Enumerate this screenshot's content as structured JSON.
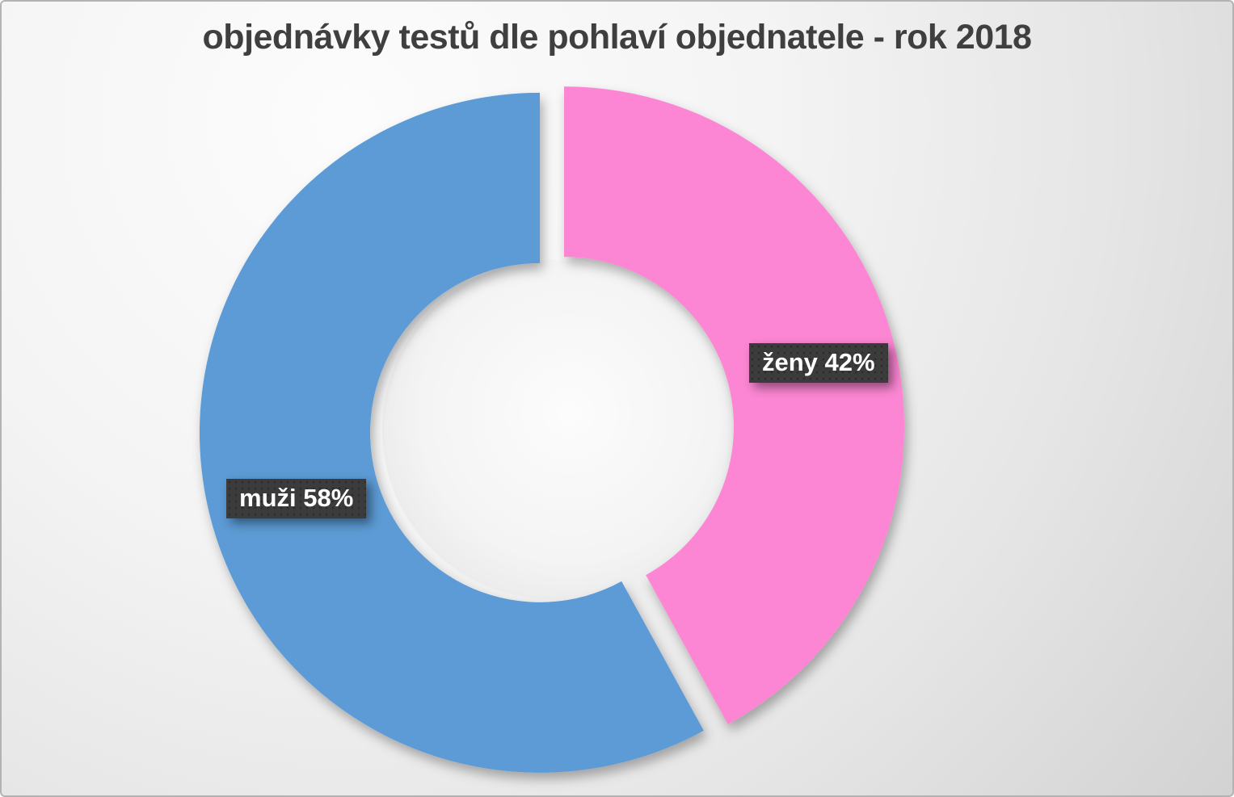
{
  "page": {
    "background_top_left": "#FAFAFA",
    "background_bottom_right": "#D2D2D2",
    "border_color": "#B3B3B3",
    "title_color": "#3F3F3F"
  },
  "chart_data": {
    "type": "pie",
    "subtype": "donut",
    "title": "objednávky testů dle pohlaví objednatele - rok 2018",
    "categories": [
      "ženy",
      "muži"
    ],
    "values": [
      42,
      58
    ],
    "unit": "%",
    "segments": [
      {
        "label": "ženy",
        "slug": "zeny",
        "value": 42,
        "percent_text": "42%",
        "data_label": "ženy 42%",
        "color": "#FC86D3"
      },
      {
        "label": "muži",
        "slug": "muzi",
        "value": 58,
        "percent_text": "58%",
        "data_label": "muži 58%",
        "color": "#5B9BD5"
      }
    ],
    "start_angle_deg": 0,
    "direction": "clockwise",
    "donut_hole_ratio": 0.5,
    "slice_separation": true,
    "legend": "none",
    "data_label_style": {
      "text_color": "#FFFFFF",
      "background_color": "#3B3B3B",
      "pattern": "dotted",
      "font_weight": "bold"
    }
  }
}
